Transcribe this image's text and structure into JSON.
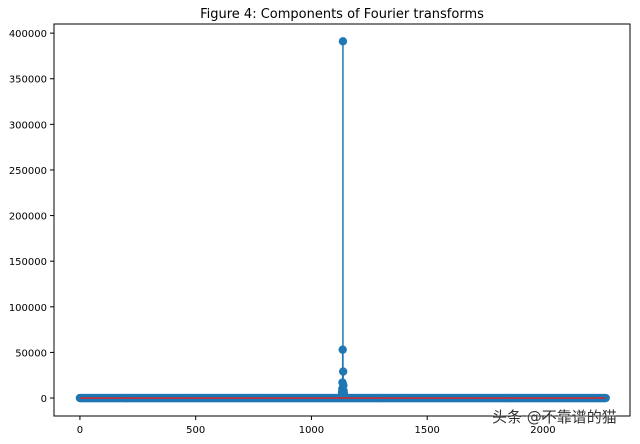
{
  "chart_data": {
    "type": "stem",
    "title": "Figure 4: Components of Fourier transforms",
    "xlabel": "",
    "ylabel": "",
    "xlim": [
      -112,
      2376
    ],
    "ylim": [
      -19700,
      410000
    ],
    "xticks": [
      0,
      500,
      1000,
      1500,
      2000
    ],
    "xtick_labels": [
      "0",
      "500",
      "1000",
      "1500",
      "2000"
    ],
    "yticks": [
      0,
      50000,
      100000,
      150000,
      200000,
      250000,
      300000,
      350000,
      400000
    ],
    "ytick_labels": [
      "0",
      "50000",
      "100000",
      "150000",
      "200000",
      "250000",
      "300000",
      "350000",
      "400000"
    ],
    "grid": false,
    "sample_count": 2272,
    "notable_points": [
      {
        "x": 1136,
        "y": 391000
      },
      {
        "x": 1135,
        "y": 53000
      },
      {
        "x": 1137,
        "y": 29000
      },
      {
        "x": 1134,
        "y": 17000
      },
      {
        "x": 1138,
        "y": 14000
      },
      {
        "x": 1133,
        "y": 10000
      },
      {
        "x": 1139,
        "y": 8000
      },
      {
        "x": 1132,
        "y": 6000
      },
      {
        "x": 1140,
        "y": 5000
      }
    ],
    "colors": {
      "stem": "#1f77b4",
      "marker": "#1f77b4",
      "baseline": "#d62728"
    }
  },
  "watermark": "头条 @不靠谱的猫"
}
